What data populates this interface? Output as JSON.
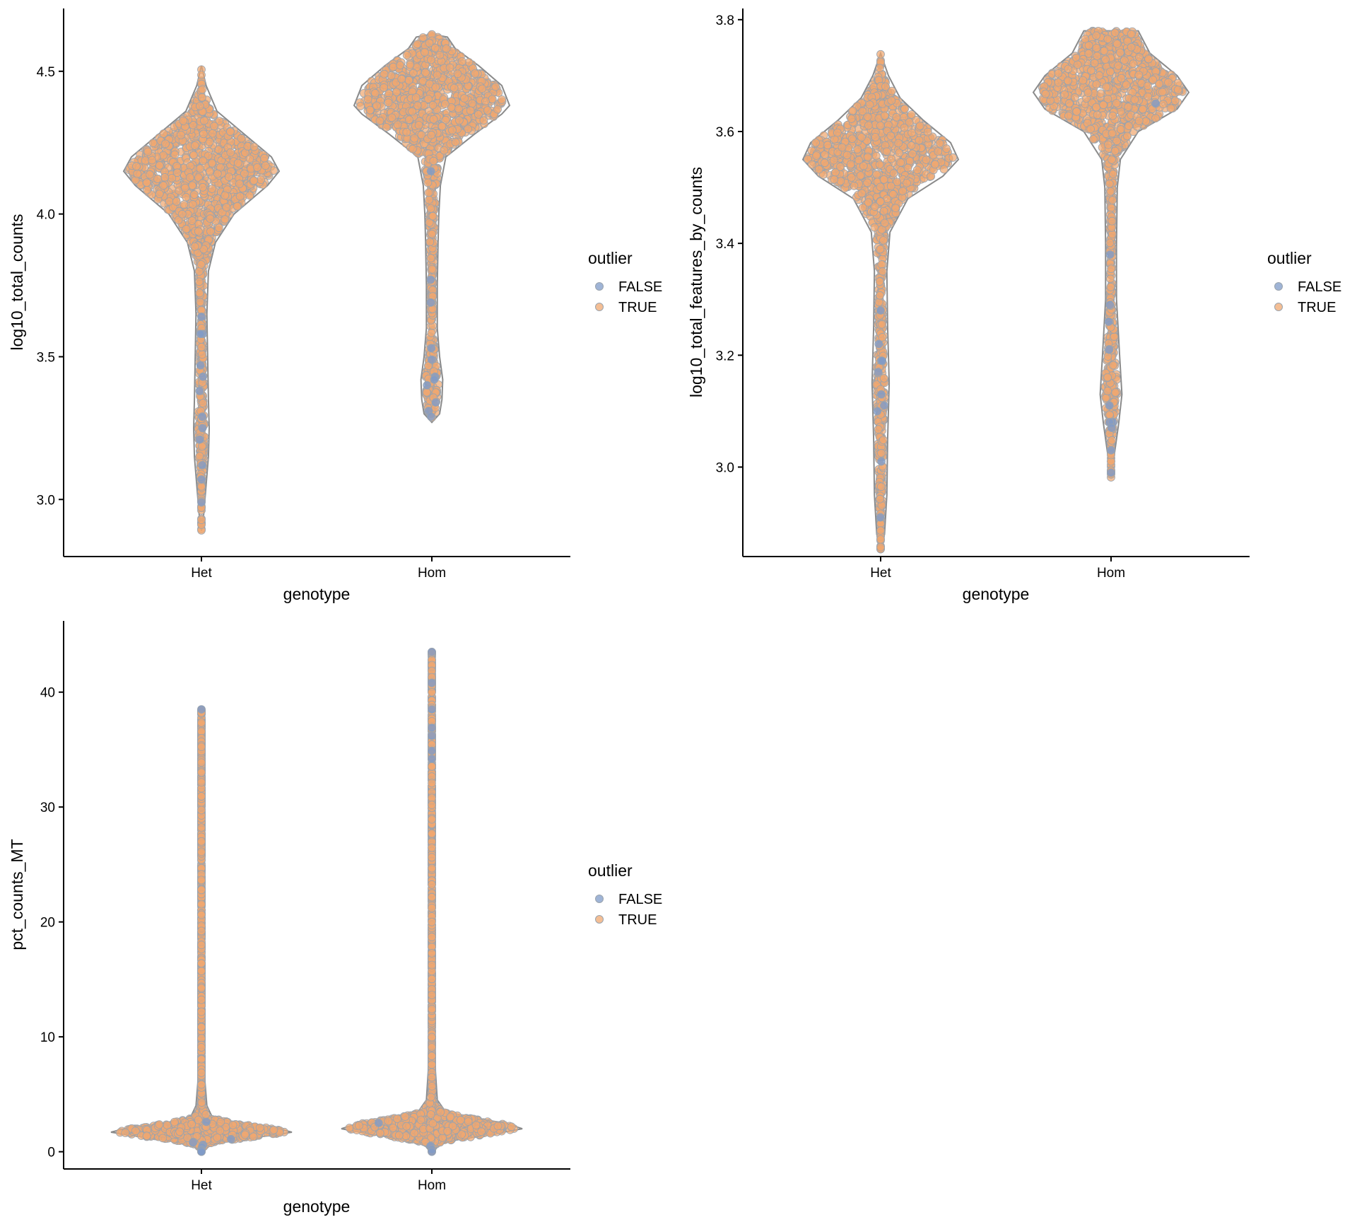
{
  "colors": {
    "false_point": "#7f9bc8",
    "true_point": "#f0a870",
    "point_edge": "#9aa3ad",
    "violin_outline": "#8a8a8a",
    "axis": "#000000"
  },
  "chart_data": [
    {
      "type": "violin",
      "xlabel": "genotype",
      "ylabel": "log10_total_counts",
      "categories": [
        "Het",
        "Hom"
      ],
      "ylim": [
        2.8,
        4.72
      ],
      "yticks": [
        3.0,
        3.5,
        4.0,
        4.5
      ],
      "ytick_labels": [
        "3.0",
        "3.5",
        "4.0",
        "4.5"
      ],
      "legend": {
        "title": "outlier",
        "entries": [
          "FALSE",
          "TRUE"
        ],
        "placement": "right"
      },
      "grid": false,
      "violins": [
        {
          "category": "Het",
          "min": 2.89,
          "max": 4.52,
          "profile": [
            [
              2.89,
              0.0
            ],
            [
              2.95,
              0.03
            ],
            [
              3.05,
              0.06
            ],
            [
              3.15,
              0.09
            ],
            [
              3.25,
              0.1
            ],
            [
              3.35,
              0.09
            ],
            [
              3.5,
              0.08
            ],
            [
              3.65,
              0.07
            ],
            [
              3.8,
              0.09
            ],
            [
              3.9,
              0.18
            ],
            [
              4.0,
              0.42
            ],
            [
              4.1,
              0.85
            ],
            [
              4.15,
              1.0
            ],
            [
              4.2,
              0.9
            ],
            [
              4.28,
              0.55
            ],
            [
              4.36,
              0.2
            ],
            [
              4.45,
              0.06
            ],
            [
              4.52,
              0.0
            ]
          ]
        },
        {
          "category": "Hom",
          "min": 3.27,
          "max": 4.63,
          "profile": [
            [
              3.27,
              0.0
            ],
            [
              3.3,
              0.1
            ],
            [
              3.35,
              0.13
            ],
            [
              3.42,
              0.14
            ],
            [
              3.5,
              0.1
            ],
            [
              3.6,
              0.07
            ],
            [
              3.75,
              0.07
            ],
            [
              3.9,
              0.08
            ],
            [
              4.0,
              0.09
            ],
            [
              4.1,
              0.11
            ],
            [
              4.2,
              0.18
            ],
            [
              4.28,
              0.55
            ],
            [
              4.35,
              0.9
            ],
            [
              4.38,
              1.0
            ],
            [
              4.45,
              0.9
            ],
            [
              4.52,
              0.6
            ],
            [
              4.58,
              0.3
            ],
            [
              4.62,
              0.2
            ],
            [
              4.63,
              0.0
            ]
          ]
        }
      ],
      "outliers_false": [
        {
          "category": "Het",
          "values": [
            3.58,
            3.58,
            3.64,
            3.47,
            3.43,
            3.38,
            3.29,
            3.25,
            3.21,
            3.12,
            3.07,
            2.99
          ]
        },
        {
          "category": "Hom",
          "values": [
            4.15,
            3.77,
            3.69,
            3.53,
            3.49,
            3.43,
            3.42,
            3.4,
            3.34,
            3.31,
            3.29
          ]
        }
      ]
    },
    {
      "type": "violin",
      "xlabel": "genotype",
      "ylabel": "log10_total_features_by_counts",
      "categories": [
        "Het",
        "Hom"
      ],
      "ylim": [
        2.84,
        3.82
      ],
      "yticks": [
        3.0,
        3.2,
        3.4,
        3.6,
        3.8
      ],
      "ytick_labels": [
        "3.0",
        "3.2",
        "3.4",
        "3.6",
        "3.8"
      ],
      "legend": {
        "title": "outlier",
        "entries": [
          "FALSE",
          "TRUE"
        ],
        "placement": "right"
      },
      "grid": false,
      "violins": [
        {
          "category": "Het",
          "min": 2.85,
          "max": 3.74,
          "profile": [
            [
              2.85,
              0.0
            ],
            [
              2.88,
              0.05
            ],
            [
              2.95,
              0.08
            ],
            [
              3.05,
              0.09
            ],
            [
              3.15,
              0.11
            ],
            [
              3.25,
              0.09
            ],
            [
              3.35,
              0.08
            ],
            [
              3.42,
              0.12
            ],
            [
              3.48,
              0.35
            ],
            [
              3.52,
              0.8
            ],
            [
              3.55,
              1.0
            ],
            [
              3.58,
              0.9
            ],
            [
              3.62,
              0.55
            ],
            [
              3.66,
              0.25
            ],
            [
              3.7,
              0.1
            ],
            [
              3.74,
              0.0
            ]
          ]
        },
        {
          "category": "Hom",
          "min": 2.98,
          "max": 3.78,
          "profile": [
            [
              2.98,
              0.0
            ],
            [
              3.02,
              0.04
            ],
            [
              3.08,
              0.1
            ],
            [
              3.13,
              0.14
            ],
            [
              3.2,
              0.11
            ],
            [
              3.3,
              0.07
            ],
            [
              3.4,
              0.07
            ],
            [
              3.5,
              0.08
            ],
            [
              3.55,
              0.12
            ],
            [
              3.6,
              0.35
            ],
            [
              3.64,
              0.85
            ],
            [
              3.67,
              1.0
            ],
            [
              3.7,
              0.85
            ],
            [
              3.74,
              0.5
            ],
            [
              3.78,
              0.35
            ],
            [
              3.78,
              0.0
            ]
          ]
        }
      ],
      "outliers_false": [
        {
          "category": "Het",
          "values": [
            3.28,
            3.22,
            3.19,
            3.19,
            3.17,
            3.13,
            3.11,
            3.1,
            3.01,
            2.91
          ]
        },
        {
          "category": "Hom",
          "values": [
            3.65,
            3.38,
            3.29,
            3.26,
            3.21,
            3.11,
            3.08,
            3.08,
            3.07,
            3.03,
            2.99
          ]
        }
      ]
    },
    {
      "type": "violin",
      "xlabel": "genotype",
      "ylabel": "pct_counts_MT",
      "categories": [
        "Het",
        "Hom"
      ],
      "ylim": [
        -1.5,
        46.2
      ],
      "yticks": [
        0,
        10,
        20,
        30,
        40
      ],
      "ytick_labels": [
        "0",
        "10",
        "20",
        "30",
        "40"
      ],
      "legend": {
        "title": "outlier",
        "entries": [
          "FALSE",
          "TRUE"
        ],
        "placement": "right"
      },
      "grid": false,
      "violins": [
        {
          "category": "Het",
          "min": 0.0,
          "max": 38.5,
          "profile": [
            [
              0.0,
              0.02
            ],
            [
              0.6,
              0.1
            ],
            [
              1.0,
              0.35
            ],
            [
              1.4,
              0.75
            ],
            [
              1.7,
              1.0
            ],
            [
              2.0,
              0.85
            ],
            [
              2.5,
              0.4
            ],
            [
              3.0,
              0.12
            ],
            [
              4.0,
              0.06
            ],
            [
              6.0,
              0.04
            ],
            [
              10.0,
              0.03
            ],
            [
              20.0,
              0.02
            ],
            [
              30.0,
              0.015
            ],
            [
              38.5,
              0.0
            ]
          ]
        },
        {
          "category": "Hom",
          "min": 0.0,
          "max": 43.5,
          "profile": [
            [
              0.0,
              0.02
            ],
            [
              0.6,
              0.08
            ],
            [
              1.0,
              0.25
            ],
            [
              1.5,
              0.65
            ],
            [
              2.0,
              1.0
            ],
            [
              2.5,
              0.8
            ],
            [
              3.0,
              0.4
            ],
            [
              3.5,
              0.15
            ],
            [
              4.5,
              0.06
            ],
            [
              7.0,
              0.04
            ],
            [
              12.0,
              0.03
            ],
            [
              25.0,
              0.02
            ],
            [
              35.0,
              0.015
            ],
            [
              43.5,
              0.0
            ]
          ]
        }
      ],
      "outliers_false": [
        {
          "category": "Het",
          "values": [
            38.5,
            2.6,
            1.1,
            0.8,
            0.6,
            0.4,
            0.2,
            0.1,
            0.0,
            0.0
          ]
        },
        {
          "category": "Hom",
          "values": [
            43.5,
            40.8,
            38.5,
            36.9,
            36.2,
            34.9,
            34.2,
            2.5,
            0.5,
            0.2,
            0.0
          ]
        }
      ]
    }
  ]
}
